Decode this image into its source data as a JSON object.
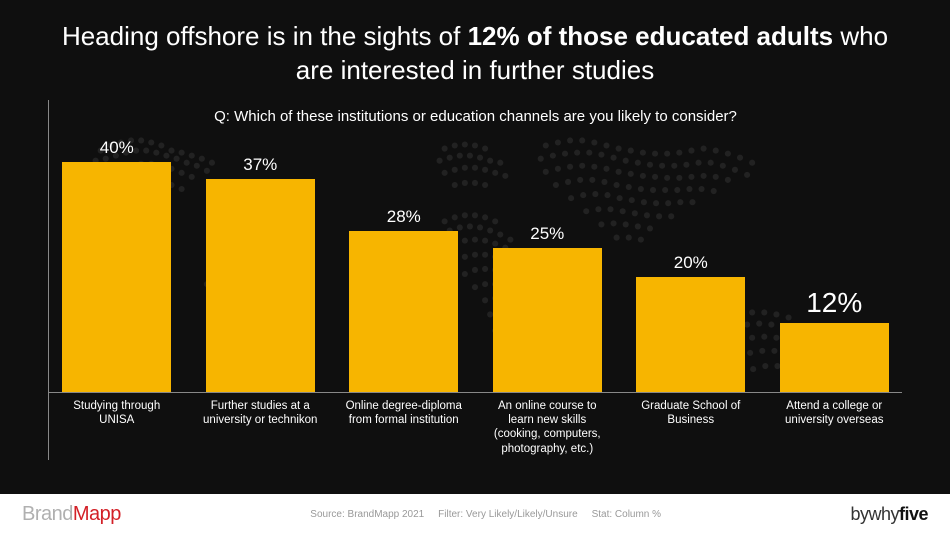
{
  "title_pre": "Heading offshore is in the sights of ",
  "title_bold": "12% of those educated adults",
  "title_post": " who are interested in further studies",
  "question": "Q: Which of these institutions or education channels are you likely to consider?",
  "chart": {
    "type": "bar",
    "max_value": 40,
    "bar_color": "#f7b500",
    "background_color": "#0f0f0f",
    "axis_color": "#888888",
    "value_color": "#ffffff",
    "label_color": "#ffffff",
    "value_fontsize": 17,
    "highlight_value_fontsize": 28,
    "label_fontsize": 11.5,
    "bars": [
      {
        "label": "Studying through UNISA",
        "value": 40,
        "display": "40%",
        "highlight": false
      },
      {
        "label": "Further studies at a university or technikon",
        "value": 37,
        "display": "37%",
        "highlight": false
      },
      {
        "label": "Online degree-diploma from formal institution",
        "value": 28,
        "display": "28%",
        "highlight": false
      },
      {
        "label": "An online course to learn new skills (cooking, computers, photography, etc.)",
        "value": 25,
        "display": "25%",
        "highlight": false
      },
      {
        "label": "Graduate School of Business",
        "value": 20,
        "display": "20%",
        "highlight": false
      },
      {
        "label": "Attend a college or university overseas",
        "value": 12,
        "display": "12%",
        "highlight": true
      }
    ]
  },
  "footer": {
    "brand_pre": "Brand",
    "brand_post": "Mapp",
    "source": "Source: BrandMapp 2021",
    "filter": "Filter: Very Likely/Likely/Unsure",
    "stat": "Stat: Column %",
    "by_pre": "bywhy",
    "by_post": "five"
  }
}
